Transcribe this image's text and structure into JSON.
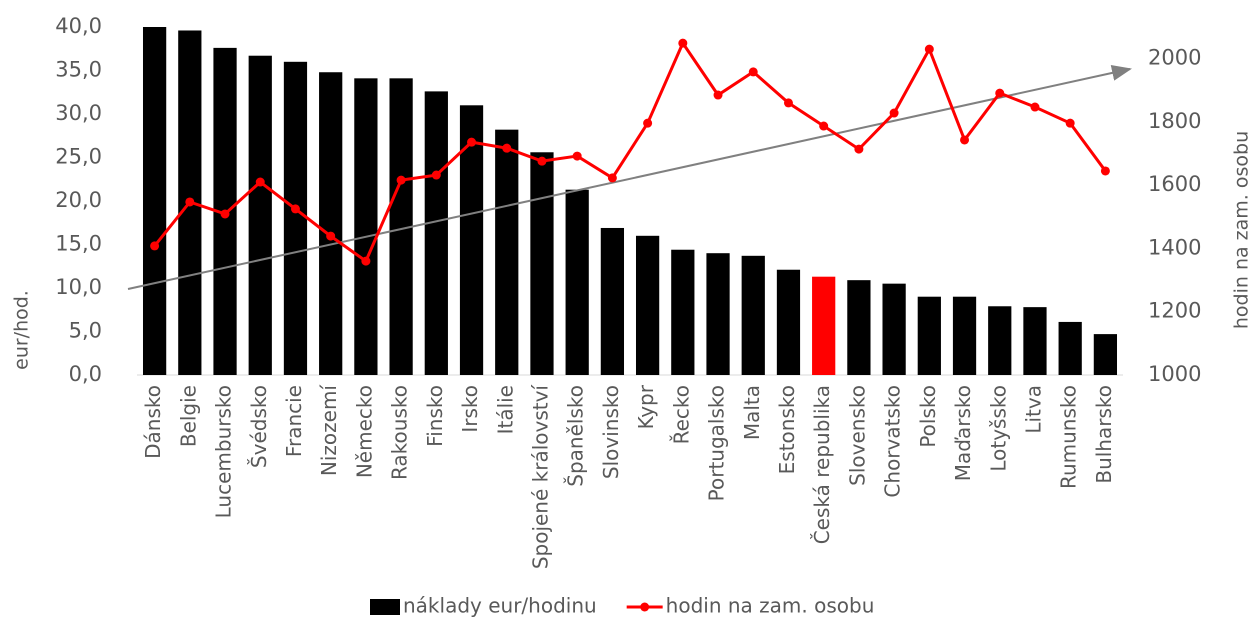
{
  "chart_data": {
    "type": "combo",
    "categories": [
      "Dánsko",
      "Belgie",
      "Lucembursko",
      "Švédsko",
      "Francie",
      "Nizozemí",
      "Německo",
      "Rakousko",
      "Finsko",
      "Irsko",
      "Itálie",
      "Spojené království",
      "Španělsko",
      "Slovinsko",
      "Kypr",
      "Řecko",
      "Portugalsko",
      "Malta",
      "Estonsko",
      "Česká republika",
      "Slovensko",
      "Chorvatsko",
      "Polsko",
      "Maďarsko",
      "Lotyšsko",
      "Litva",
      "Rumunsko",
      "Bulharsko"
    ],
    "series": [
      {
        "name": "náklady eur/hodinu",
        "type": "bar",
        "axis": "y",
        "color": "#000000",
        "colors": [
          "#000000",
          "#000000",
          "#000000",
          "#000000",
          "#000000",
          "#000000",
          "#000000",
          "#000000",
          "#000000",
          "#000000",
          "#000000",
          "#000000",
          "#000000",
          "#000000",
          "#000000",
          "#000000",
          "#000000",
          "#000000",
          "#000000",
          "#ff0000",
          "#000000",
          "#000000",
          "#000000",
          "#000000",
          "#000000",
          "#000000",
          "#000000",
          "#000000"
        ],
        "values": [
          40.0,
          39.6,
          37.6,
          36.7,
          36.0,
          34.8,
          34.1,
          34.1,
          32.6,
          31.0,
          28.2,
          25.6,
          21.3,
          16.9,
          16.0,
          14.4,
          14.0,
          13.7,
          12.1,
          11.3,
          10.9,
          10.5,
          9.0,
          9.0,
          7.9,
          7.8,
          6.1,
          4.7
        ]
      },
      {
        "name": "hodin na zam. osobu",
        "type": "line",
        "axis": "y2",
        "color": "#ff0000",
        "values": [
          1408,
          1547,
          1509,
          1610,
          1525,
          1439,
          1360,
          1616,
          1632,
          1736,
          1717,
          1676,
          1692,
          1623,
          1796,
          2049,
          1885,
          1958,
          1860,
          1787,
          1714,
          1828,
          2030,
          1743,
          1891,
          1847,
          1796,
          1645
        ]
      }
    ],
    "ylabel": "eur/hod.",
    "y2label": "hodin na zam. osobu",
    "ylim": [
      0,
      40
    ],
    "yticks": [
      {
        "value": 0,
        "label": "0,0"
      },
      {
        "value": 5,
        "label": "5,0"
      },
      {
        "value": 10,
        "label": "10,0"
      },
      {
        "value": 15,
        "label": "15,0"
      },
      {
        "value": 20,
        "label": "20,0"
      },
      {
        "value": 25,
        "label": "25,0"
      },
      {
        "value": 30,
        "label": "30,0"
      },
      {
        "value": 35,
        "label": "35,0"
      },
      {
        "value": 40,
        "label": "40,0"
      }
    ],
    "y2lim": [
      1000,
      2100
    ],
    "y2ticks": [
      1000,
      1200,
      1400,
      1600,
      1800,
      2000
    ],
    "legend": "bottom"
  }
}
